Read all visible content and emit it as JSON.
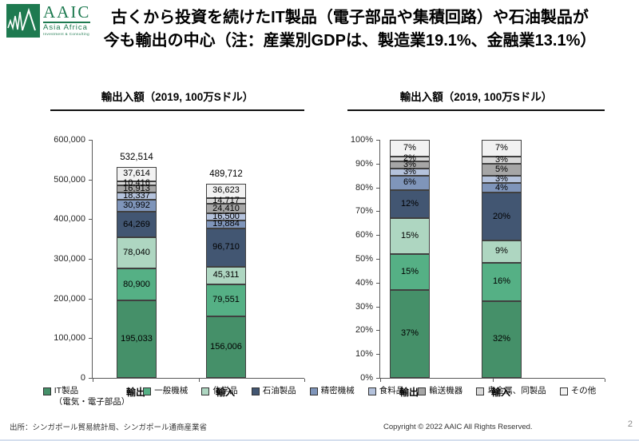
{
  "page": {
    "title_line1": "古くから投資を続けたIT製品（電子部品や集積回路）や石油製品が",
    "title_line2": "今も輸出の中心（注：産業別GDPは、製造業19.1%、金融業13.1%）",
    "source": "出所：シンガポール貿易統計局、シンガポール通商産業省",
    "copyright": "Copyright © 2022 AAIC All Rights Reserved.",
    "page_number": "2"
  },
  "logo": {
    "acronym": "AAIC",
    "line1": "Asia Africa",
    "line2": "Investment & Consulting"
  },
  "colors": {
    "logo_green": "#1e7a50",
    "segment_border": "#404040",
    "axis": "#595959",
    "footer_line": "#d5dfee"
  },
  "legend": [
    {
      "label": "IT製品",
      "sublabel": "（電気・電子部品）",
      "color": "#459069"
    },
    {
      "label": "一般機械",
      "color": "#55b085"
    },
    {
      "label": "化学品",
      "color": "#aed6c1"
    },
    {
      "label": "石油製品",
      "color": "#425672"
    },
    {
      "label": "精密機械",
      "color": "#7f95ba"
    },
    {
      "label": "食料品",
      "color": "#b4c2dc"
    },
    {
      "label": "輸送機器",
      "color": "#a6a6a6"
    },
    {
      "label": "卑金属、同製品",
      "color": "#d8d8d8"
    },
    {
      "label": "その他",
      "color": "#f2f2f2"
    }
  ],
  "chart_data": [
    {
      "type": "bar",
      "stacked": true,
      "percent": false,
      "title": "輸出入額（2019, 100万Sドル）",
      "categories": [
        "輸出",
        "輸入"
      ],
      "totals": [
        532514,
        489712
      ],
      "ylim": [
        0,
        600000
      ],
      "yticks": [
        "600,000",
        "500,000",
        "400,000",
        "300,000",
        "200,000",
        "100,000",
        "0"
      ],
      "series": [
        {
          "name": "IT製品（電気・電子部品）",
          "values": [
            195033,
            156006
          ]
        },
        {
          "name": "一般機械",
          "values": [
            80900,
            79551
          ]
        },
        {
          "name": "化学品",
          "values": [
            78040,
            45311
          ]
        },
        {
          "name": "石油製品",
          "values": [
            64269,
            96710
          ]
        },
        {
          "name": "精密機械",
          "values": [
            30992,
            19884
          ]
        },
        {
          "name": "食料品",
          "values": [
            18337,
            16500
          ]
        },
        {
          "name": "輸送機器",
          "values": [
            16913,
            24410
          ]
        },
        {
          "name": "卑金属、同製品",
          "values": [
            10416,
            14717
          ]
        },
        {
          "name": "その他",
          "values": [
            37614,
            36623
          ]
        }
      ]
    },
    {
      "type": "bar",
      "stacked": true,
      "percent": true,
      "title": "輸出入額（2019, 100万Sドル）",
      "categories": [
        "輸出",
        "輸入"
      ],
      "ylim": [
        0,
        100
      ],
      "yticks": [
        "100%",
        "90%",
        "80%",
        "70%",
        "60%",
        "50%",
        "40%",
        "30%",
        "20%",
        "10%",
        "0%"
      ],
      "series": [
        {
          "name": "IT製品（電気・電子部品）",
          "values": [
            37,
            32
          ]
        },
        {
          "name": "一般機械",
          "values": [
            15,
            16
          ]
        },
        {
          "name": "化学品",
          "values": [
            15,
            9
          ]
        },
        {
          "name": "石油製品",
          "values": [
            12,
            20
          ]
        },
        {
          "name": "精密機械",
          "values": [
            6,
            4
          ]
        },
        {
          "name": "食料品",
          "values": [
            3,
            3
          ]
        },
        {
          "name": "輸送機器",
          "values": [
            3,
            5
          ]
        },
        {
          "name": "卑金属、同製品",
          "values": [
            2,
            3
          ]
        },
        {
          "name": "その他",
          "values": [
            7,
            7
          ]
        }
      ]
    }
  ]
}
